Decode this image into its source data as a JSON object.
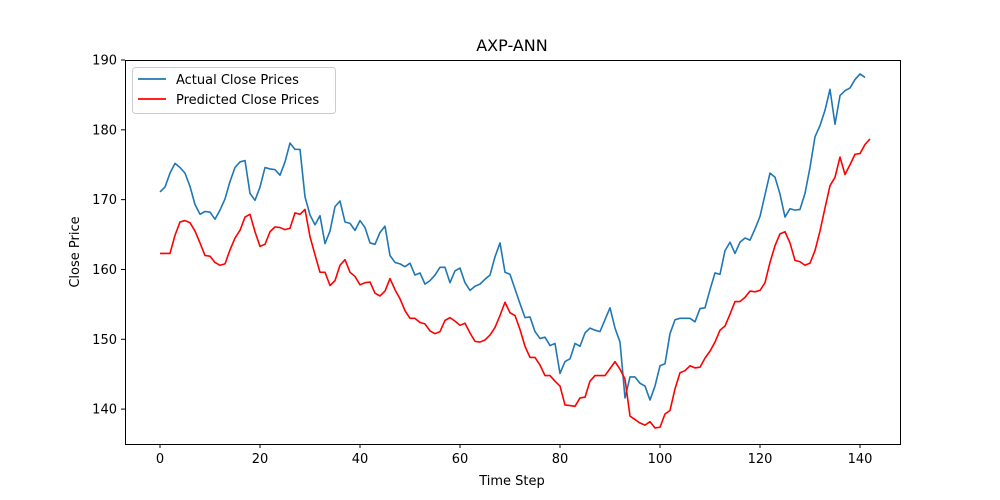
{
  "chart_data": {
    "type": "line",
    "title": "AXP-ANN",
    "xlabel": "Time Step",
    "ylabel": "Close Price",
    "xlim": [
      -7,
      148
    ],
    "ylim": [
      135,
      190
    ],
    "xticks": [
      0,
      20,
      40,
      60,
      80,
      100,
      120,
      140
    ],
    "yticks": [
      140,
      150,
      160,
      170,
      180,
      190
    ],
    "grid": false,
    "legend_position": "top-left",
    "series": [
      {
        "name": "Actual Close Prices",
        "color": "#1f77b4",
        "values": [
          171.1,
          171.8,
          173.8,
          175.2,
          174.6,
          173.8,
          171.9,
          169.3,
          167.9,
          168.3,
          168.2,
          167.2,
          168.5,
          170.1,
          172.6,
          174.6,
          175.4,
          175.6,
          170.9,
          169.9,
          171.8,
          174.6,
          174.4,
          174.3,
          173.5,
          175.4,
          178.1,
          177.2,
          177.2,
          170.4,
          167.8,
          166.4,
          167.7,
          163.7,
          165.5,
          169.0,
          169.8,
          166.8,
          166.6,
          165.6,
          167.0,
          166.0,
          163.8,
          163.6,
          165.3,
          166.2,
          162.0,
          161.0,
          160.8,
          160.4,
          160.9,
          159.2,
          159.5,
          157.9,
          158.4,
          159.2,
          160.3,
          160.3,
          158.1,
          159.8,
          160.2,
          158.1,
          157.0,
          157.6,
          157.9,
          158.6,
          159.2,
          161.8,
          163.8,
          159.6,
          159.3,
          157.2,
          155.1,
          153.1,
          153.2,
          151.1,
          150.1,
          150.3,
          149.1,
          149.4,
          145.1,
          146.8,
          147.2,
          149.4,
          149.0,
          150.9,
          151.6,
          151.3,
          151.1,
          152.8,
          154.5,
          151.6,
          149.6,
          141.6,
          144.6,
          144.6,
          143.7,
          143.3,
          141.3,
          143.3,
          146.2,
          146.5,
          150.8,
          152.8,
          153.0,
          153.0,
          153.0,
          152.5,
          154.4,
          154.5,
          157.1,
          159.5,
          159.3,
          162.7,
          163.9,
          162.3,
          163.9,
          164.5,
          164.2,
          165.8,
          167.6,
          170.7,
          173.8,
          173.2,
          170.8,
          167.5,
          168.7,
          168.5,
          168.6,
          170.9,
          174.6,
          179.0,
          180.6,
          182.8,
          185.8,
          180.8,
          184.9,
          185.6,
          186.0,
          187.2,
          188.0,
          187.5
        ]
      },
      {
        "name": "Predicted Close Prices",
        "color": "#ff0000",
        "values": [
          162.3,
          162.3,
          162.3,
          164.9,
          166.8,
          167.0,
          166.7,
          165.5,
          163.8,
          162.0,
          161.9,
          161.0,
          160.6,
          160.8,
          162.8,
          164.5,
          165.6,
          167.5,
          167.9,
          165.4,
          163.3,
          163.6,
          165.4,
          166.1,
          166.0,
          165.7,
          165.9,
          168.1,
          167.9,
          168.6,
          164.7,
          162.1,
          159.6,
          159.6,
          157.7,
          158.4,
          160.6,
          161.4,
          159.6,
          159.0,
          157.8,
          158.1,
          158.2,
          156.6,
          156.2,
          156.9,
          158.7,
          157.1,
          155.8,
          154.1,
          153.0,
          153.0,
          152.4,
          152.2,
          151.2,
          150.8,
          151.1,
          152.7,
          153.1,
          152.6,
          152.0,
          152.3,
          150.9,
          149.7,
          149.6,
          149.9,
          150.6,
          151.7,
          153.4,
          155.3,
          153.8,
          153.4,
          151.4,
          149.0,
          147.4,
          147.4,
          146.3,
          144.8,
          144.8,
          144.0,
          143.3,
          140.6,
          140.5,
          140.4,
          141.6,
          141.7,
          144.0,
          144.8,
          144.8,
          144.8,
          145.8,
          146.8,
          145.7,
          144.3,
          139.0,
          138.5,
          138.0,
          137.7,
          138.2,
          137.3,
          137.4,
          139.3,
          139.8,
          142.9,
          145.2,
          145.5,
          146.2,
          145.9,
          146.0,
          147.3,
          148.3,
          149.6,
          151.3,
          151.9,
          153.6,
          155.4,
          155.4,
          156.0,
          156.9,
          156.8,
          157.0,
          158.1,
          161.0,
          163.4,
          165.1,
          165.4,
          163.8,
          161.3,
          161.1,
          160.6,
          160.9,
          162.7,
          165.5,
          168.8,
          172.0,
          173.2,
          176.1,
          173.6,
          175.0,
          176.5,
          176.6,
          177.9,
          178.7
        ]
      }
    ]
  }
}
